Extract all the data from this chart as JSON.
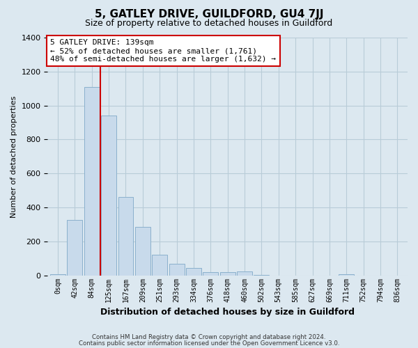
{
  "title": "5, GATLEY DRIVE, GUILDFORD, GU4 7JJ",
  "subtitle": "Size of property relative to detached houses in Guildford",
  "xlabel": "Distribution of detached houses by size in Guildford",
  "ylabel": "Number of detached properties",
  "bar_labels": [
    "0sqm",
    "42sqm",
    "84sqm",
    "125sqm",
    "167sqm",
    "209sqm",
    "251sqm",
    "293sqm",
    "334sqm",
    "376sqm",
    "418sqm",
    "460sqm",
    "502sqm",
    "543sqm",
    "585sqm",
    "627sqm",
    "669sqm",
    "711sqm",
    "752sqm",
    "794sqm",
    "836sqm"
  ],
  "bar_values": [
    5,
    325,
    1110,
    940,
    460,
    285,
    120,
    70,
    45,
    20,
    18,
    22,
    2,
    0,
    0,
    0,
    0,
    5,
    0,
    0,
    0
  ],
  "bar_color": "#c8daeb",
  "bar_edge_color": "#8ab0cc",
  "highlight_color": "#cc0000",
  "annotation_text": "5 GATLEY DRIVE: 139sqm\n← 52% of detached houses are smaller (1,761)\n48% of semi-detached houses are larger (1,632) →",
  "annotation_box_color": "#ffffff",
  "annotation_box_edge": "#cc0000",
  "ylim": [
    0,
    1400
  ],
  "yticks": [
    0,
    200,
    400,
    600,
    800,
    1000,
    1200,
    1400
  ],
  "footer_line1": "Contains HM Land Registry data © Crown copyright and database right 2024.",
  "footer_line2": "Contains public sector information licensed under the Open Government Licence v3.0.",
  "bg_color": "#dce8f0",
  "plot_bg_color": "#dce8f0",
  "grid_color": "#b8ccd8"
}
